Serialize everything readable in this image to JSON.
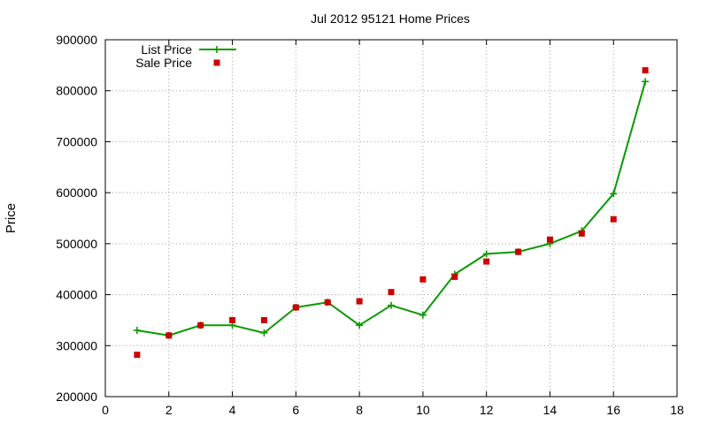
{
  "chart_data": {
    "type": "line",
    "title": "Jul 2012 95121 Home Prices",
    "xlabel": "",
    "ylabel": "Price",
    "xlim": [
      0,
      18
    ],
    "ylim": [
      200000,
      900000
    ],
    "x_ticks": [
      "0",
      "2",
      "4",
      "6",
      "8",
      "10",
      "12",
      "14",
      "16",
      "18"
    ],
    "y_ticks": [
      "200000",
      "300000",
      "400000",
      "500000",
      "600000",
      "700000",
      "800000",
      "900000"
    ],
    "grid": true,
    "legend_position": "top-left",
    "x": [
      1,
      2,
      3,
      4,
      5,
      6,
      7,
      8,
      9,
      10,
      11,
      12,
      13,
      14,
      15,
      16,
      17
    ],
    "series": [
      {
        "name": "List Price",
        "style": "line-plus",
        "color": "#0a9a00",
        "values": [
          330000,
          320000,
          340000,
          340000,
          325000,
          375000,
          385000,
          340000,
          379000,
          360000,
          440000,
          480000,
          484000,
          500000,
          525000,
          598000,
          818000
        ]
      },
      {
        "name": "Sale Price",
        "style": "square-marker",
        "color": "#cc0000",
        "values": [
          282000,
          320000,
          340000,
          350000,
          350000,
          375000,
          385000,
          387000,
          405000,
          430000,
          435000,
          465000,
          484000,
          508000,
          520000,
          548000,
          840000
        ]
      }
    ]
  }
}
